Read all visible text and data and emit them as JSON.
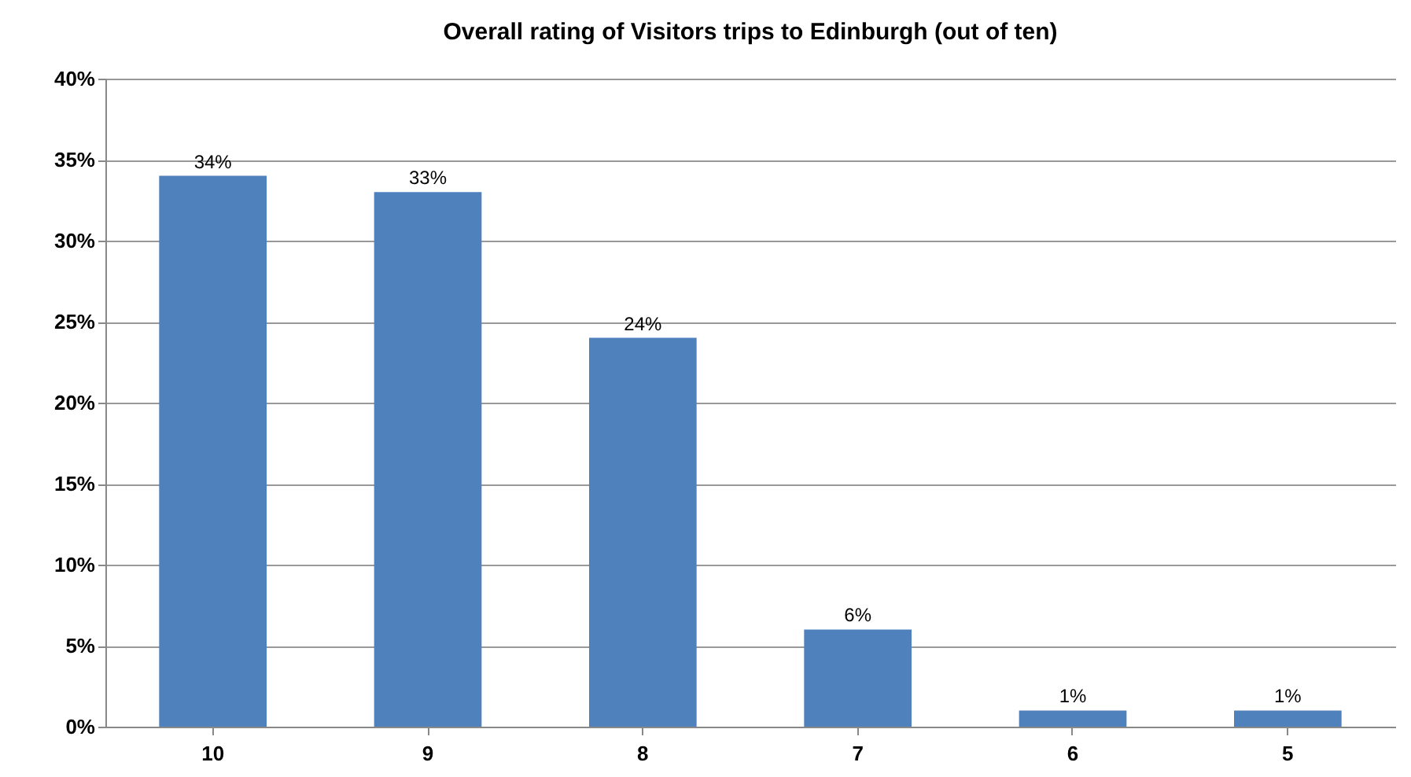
{
  "chart_data": {
    "type": "bar",
    "title": "Overall rating of Visitors trips to Edinburgh (out of ten)",
    "categories": [
      "10",
      "9",
      "8",
      "7",
      "6",
      "5"
    ],
    "values": [
      34,
      33,
      24,
      6,
      1,
      1
    ],
    "value_labels": [
      "34%",
      "33%",
      "24%",
      "6%",
      "1%",
      "1%"
    ],
    "color": "#4f81bd",
    "ylim": [
      0,
      40
    ],
    "yticks": [
      {
        "value": 0,
        "label": "0%"
      },
      {
        "value": 5,
        "label": "5%"
      },
      {
        "value": 10,
        "label": "10%"
      },
      {
        "value": 15,
        "label": "15%"
      },
      {
        "value": 20,
        "label": "20%"
      },
      {
        "value": 25,
        "label": "25%"
      },
      {
        "value": 30,
        "label": "30%"
      },
      {
        "value": 35,
        "label": "35%"
      },
      {
        "value": 40,
        "label": "40%"
      }
    ],
    "grid": "y"
  }
}
